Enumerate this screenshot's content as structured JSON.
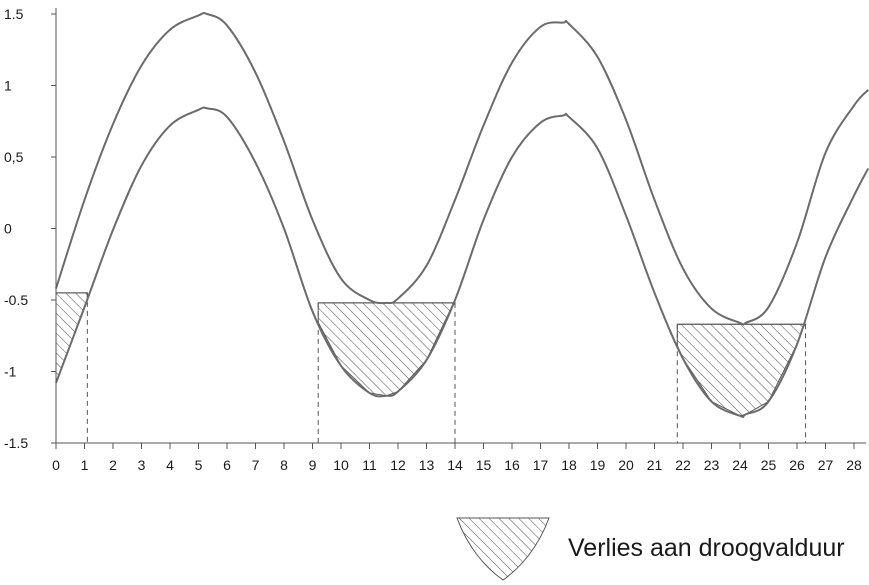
{
  "chart_data": {
    "type": "line",
    "title": "",
    "xlabel": "",
    "ylabel": "",
    "xlim": [
      0,
      28.5
    ],
    "ylim": [
      -1.5,
      1.5
    ],
    "x_ticks": [
      "0",
      "1",
      "2",
      "3",
      "4",
      "5",
      "6",
      "7",
      "8",
      "9",
      "10",
      "11",
      "12",
      "13",
      "14",
      "15",
      "16",
      "17",
      "18",
      "19",
      "20",
      "21",
      "22",
      "23",
      "24",
      "25",
      "26",
      "27",
      "28"
    ],
    "y_ticks": [
      {
        "value": 1.5,
        "label": "1.5"
      },
      {
        "value": 1,
        "label": "1"
      },
      {
        "value": 0.5,
        "label": "0,5"
      },
      {
        "value": 0,
        "label": "0"
      },
      {
        "value": -0.5,
        "label": "-0.5"
      },
      {
        "value": -1,
        "label": "-1"
      },
      {
        "value": -1.5,
        "label": "-1.5"
      }
    ],
    "series": [
      {
        "key": "upper",
        "x": [
          0,
          1,
          2,
          3,
          4,
          5,
          5.3,
          6,
          7,
          8,
          9,
          10,
          11,
          11.6,
          12,
          13,
          14,
          15,
          16,
          17,
          17.8,
          18,
          19,
          20,
          21,
          22,
          23,
          24,
          24.2,
          25,
          26,
          27,
          28,
          28.5
        ],
        "y": [
          -0.42,
          0.2,
          0.73,
          1.14,
          1.39,
          1.49,
          1.5,
          1.42,
          1.09,
          0.61,
          0.06,
          -0.35,
          -0.5,
          -0.52,
          -0.49,
          -0.26,
          0.2,
          0.72,
          1.16,
          1.41,
          1.44,
          1.43,
          1.2,
          0.76,
          0.2,
          -0.28,
          -0.56,
          -0.66,
          -0.66,
          -0.55,
          -0.1,
          0.53,
          0.86,
          0.97
        ]
      },
      {
        "key": "lower",
        "x": [
          0,
          1,
          2,
          3,
          4,
          5,
          5.3,
          6,
          7,
          8,
          9,
          10,
          11,
          11.6,
          12,
          13,
          14,
          15,
          16,
          17,
          17.8,
          18,
          19,
          20,
          21,
          22,
          23,
          24,
          24.2,
          25,
          26,
          27,
          28,
          28.5
        ],
        "y": [
          -1.08,
          -0.55,
          -0.01,
          0.44,
          0.72,
          0.83,
          0.84,
          0.78,
          0.46,
          0.0,
          -0.58,
          -0.96,
          -1.15,
          -1.17,
          -1.14,
          -0.92,
          -0.5,
          0.06,
          0.5,
          0.74,
          0.79,
          0.78,
          0.56,
          0.09,
          -0.45,
          -0.91,
          -1.21,
          -1.31,
          -1.3,
          -1.21,
          -0.81,
          -0.2,
          0.23,
          0.42
        ]
      }
    ],
    "shaded_regions": [
      {
        "x_start": 0,
        "x_end": 1.1,
        "threshold": -0.45
      },
      {
        "x_start": 9.2,
        "x_end": 14.0,
        "threshold": -0.52
      },
      {
        "x_start": 21.8,
        "x_end": 26.3,
        "threshold": -0.67
      }
    ],
    "legend": {
      "position": "bottom-right",
      "label": "Verlies aan droogvalduur"
    }
  }
}
